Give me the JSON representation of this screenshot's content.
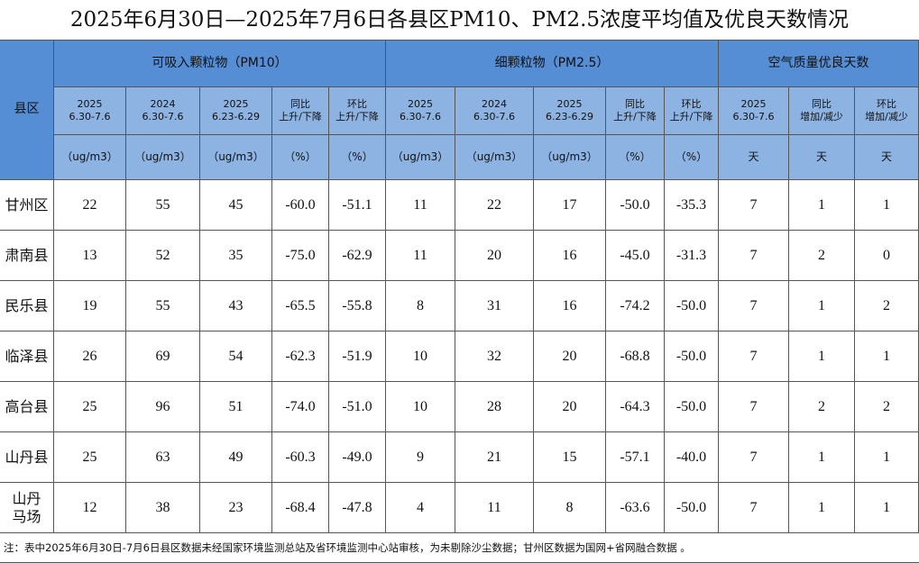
{
  "title": "2025年6月30日—2025年7月6日各县区PM10、PM2.5浓度平均值及优良天数情况",
  "region_header": "县区",
  "groups": [
    "可吸入颗粒物（PM10）",
    "细颗粒物（PM2.5）",
    "空气质量优良天数"
  ],
  "columns": [
    {
      "head": [
        "2025",
        "6.30-7.6"
      ],
      "unit": "（ug/m3）"
    },
    {
      "head": [
        "2024",
        "6.30-7.6"
      ],
      "unit": "（ug/m3）"
    },
    {
      "head": [
        "2025",
        "6.23-6.29"
      ],
      "unit": "（ug/m3）"
    },
    {
      "head": [
        "同比",
        "上升/下降"
      ],
      "unit": "（%）"
    },
    {
      "head": [
        "环比",
        "上升/下降"
      ],
      "unit": "（%）"
    },
    {
      "head": [
        "2025",
        "6.30-7.6"
      ],
      "unit": "（ug/m3）"
    },
    {
      "head": [
        "2024",
        "6.30-7.6"
      ],
      "unit": "（ug/m3）"
    },
    {
      "head": [
        "2025",
        "6.23-6.29"
      ],
      "unit": "（ug/m3）"
    },
    {
      "head": [
        "同比",
        "上升/下降"
      ],
      "unit": "（%）"
    },
    {
      "head": [
        "环比",
        "上升/下降"
      ],
      "unit": "（%）"
    },
    {
      "head": [
        "2025",
        "6.30-7.6"
      ],
      "unit": "天"
    },
    {
      "head": [
        "同比",
        "增加/减少"
      ],
      "unit": "天"
    },
    {
      "head": [
        "环比",
        "增加/减少"
      ],
      "unit": "天"
    }
  ],
  "rows": [
    {
      "name": [
        "甘州区"
      ],
      "cells": [
        "22",
        "55",
        "45",
        "-60.0",
        "-51.1",
        "11",
        "22",
        "17",
        "-50.0",
        "-35.3",
        "7",
        "1",
        "1"
      ]
    },
    {
      "name": [
        "肃南县"
      ],
      "cells": [
        "13",
        "52",
        "35",
        "-75.0",
        "-62.9",
        "11",
        "20",
        "16",
        "-45.0",
        "-31.3",
        "7",
        "2",
        "0"
      ]
    },
    {
      "name": [
        "民乐县"
      ],
      "cells": [
        "19",
        "55",
        "43",
        "-65.5",
        "-55.8",
        "8",
        "31",
        "16",
        "-74.2",
        "-50.0",
        "7",
        "1",
        "2"
      ]
    },
    {
      "name": [
        "临泽县"
      ],
      "cells": [
        "26",
        "69",
        "54",
        "-62.3",
        "-51.9",
        "10",
        "32",
        "20",
        "-68.8",
        "-50.0",
        "7",
        "1",
        "1"
      ]
    },
    {
      "name": [
        "高台县"
      ],
      "cells": [
        "25",
        "96",
        "51",
        "-74.0",
        "-51.0",
        "10",
        "28",
        "20",
        "-64.3",
        "-50.0",
        "7",
        "2",
        "2"
      ]
    },
    {
      "name": [
        "山丹县"
      ],
      "cells": [
        "25",
        "63",
        "49",
        "-60.3",
        "-49.0",
        "9",
        "21",
        "15",
        "-57.1",
        "-40.0",
        "7",
        "1",
        "1"
      ]
    },
    {
      "name": [
        "山丹",
        "马场"
      ],
      "cells": [
        "12",
        "38",
        "23",
        "-68.4",
        "-47.8",
        "4",
        "11",
        "8",
        "-63.6",
        "-50.0",
        "7",
        "1",
        "1"
      ]
    }
  ],
  "note": "注：表中2025年6月30日-7月6日县区数据未经国家环境监测总站及省环境监测中心站审核，为未剔除沙尘数据；甘州区数据为国网+省网融合数据 。"
}
